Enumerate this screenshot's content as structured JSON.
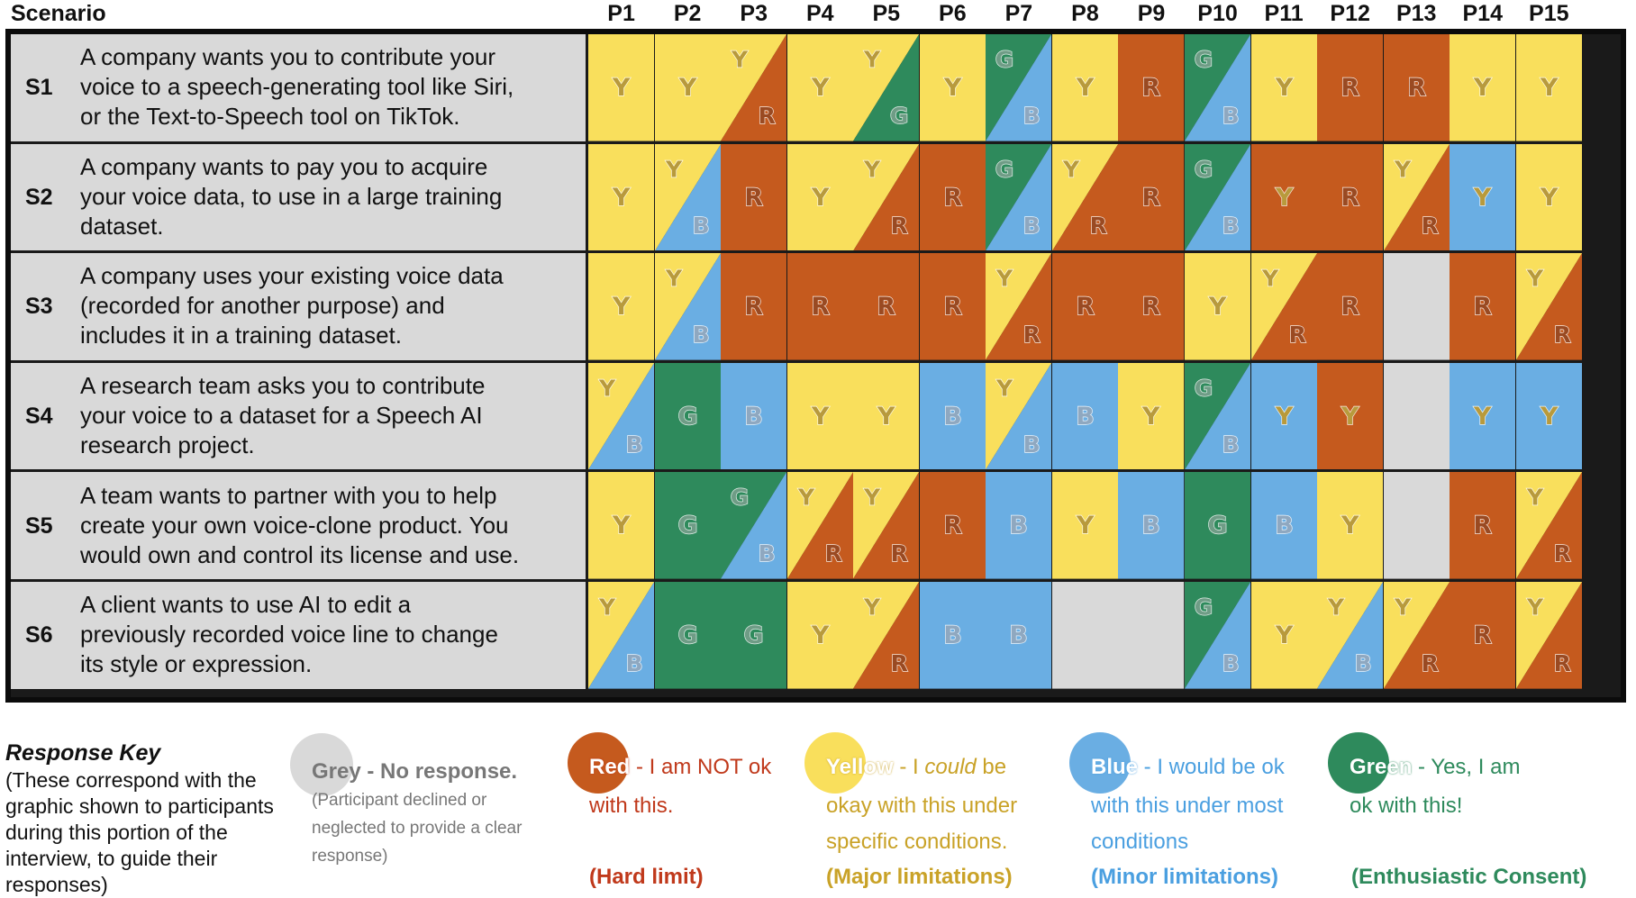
{
  "header": {
    "scenario_label": "Scenario",
    "participants": [
      "P1",
      "P2",
      "P3",
      "P4",
      "P5",
      "P6",
      "P7",
      "P8",
      "P9",
      "P10",
      "P11",
      "P12",
      "P13",
      "P14",
      "P15"
    ]
  },
  "colors": {
    "R": "#c55a1e",
    "Y": "#f9df5c",
    "B": "#6aaee3",
    "G": "#2e8a5c",
    "grey": "#d9d9d9"
  },
  "scenarios": [
    {
      "id": "S1",
      "lines": [
        "A company wants you to contribute your",
        "voice to a speech-generating tool like Siri,",
        "or the Text-to-Speech tool on TikTok."
      ],
      "responses": [
        "Y",
        "Y",
        "Y/R",
        "Y",
        "Y/G",
        "Y",
        "G/B",
        "Y",
        "R",
        "G/B",
        "Y",
        "R",
        "R",
        "Y",
        "Y"
      ]
    },
    {
      "id": "S2",
      "lines": [
        "A company wants to pay you to acquire",
        "your voice data, to use in a large training",
        "dataset."
      ],
      "responses": [
        "Y",
        "Y/B",
        "R",
        "Y",
        "Y/R",
        "R",
        "G/B",
        "Y/R",
        "R",
        "G/B",
        "Y_R",
        "R",
        "Y/R",
        "Y_B",
        "Y"
      ]
    },
    {
      "id": "S3",
      "lines": [
        "A company uses your existing voice data",
        "(recorded for another purpose) and",
        "includes it in a training dataset."
      ],
      "responses": [
        "Y",
        "Y/B",
        "R",
        "R",
        "R",
        "R",
        "Y/R",
        "R",
        "R",
        "Y",
        "Y/R",
        "R",
        "",
        "R",
        "Y/R"
      ]
    },
    {
      "id": "S4",
      "lines": [
        "A research team asks you to contribute",
        "your voice to a dataset for a Speech AI",
        "research project."
      ],
      "responses": [
        "Y/B",
        "G",
        "B",
        "Y",
        "Y",
        "B",
        "Y/B",
        "B",
        "Y",
        "G/B",
        "Y_B",
        "Y_R",
        "",
        "Y_B",
        "Y_B"
      ]
    },
    {
      "id": "S5",
      "lines": [
        "A team wants to partner with you to help",
        "create your own voice-clone product. You",
        "would own and control its license and use."
      ],
      "responses": [
        "Y",
        "G",
        "G/B",
        "Y/R",
        "Y/R",
        "R",
        "B",
        "Y",
        "B",
        "G",
        "B",
        "Y",
        "",
        "R",
        "Y/R"
      ]
    },
    {
      "id": "S6",
      "lines": [
        "A client wants to use AI to edit a",
        "previously recorded voice line to change",
        "its style or expression."
      ],
      "responses": [
        "Y/B",
        "G",
        "G",
        "Y",
        "Y/R",
        "B",
        "B",
        "",
        "",
        "G/B",
        "Y",
        "Y/B",
        "Y/R",
        "R",
        "Y/R"
      ]
    }
  ],
  "legend": {
    "title": "Response Key",
    "note": "(These correspond with the graphic shown to participants during this portion of the interview, to guide their responses)",
    "keys": [
      {
        "name": "Grey",
        "dash": " - ",
        "text": "No response.",
        "rest": "(Participant declined or neglected to provide a clear response)",
        "sub": "",
        "color_key": "grey",
        "text_color": "#777777"
      },
      {
        "name": "Red",
        "dash": " - ",
        "text": "I am NOT ok",
        "rest": "with this.",
        "sub": "(Hard limit)",
        "color_key": "R",
        "text_color": "#c0391b"
      },
      {
        "name": "Yellow",
        "dash": " - ",
        "text_pre": "I ",
        "text_em": "could",
        "text_post": " be",
        "rest": "okay with this under specific conditions.",
        "sub": "(Major limitations)",
        "color_key": "Y",
        "text_color": "#c9a227"
      },
      {
        "name": "Blue",
        "dash": " - ",
        "text": "I would be ok",
        "rest": "with this under most conditions",
        "sub": "(Minor limitations)",
        "color_key": "B",
        "text_color": "#4a9fe0"
      },
      {
        "name": "Green",
        "dash": " - ",
        "text": "Yes, I am",
        "rest": "ok with this!",
        "sub": "(Enthusiastic Consent)",
        "color_key": "G",
        "text_color": "#2e8a5c"
      }
    ]
  }
}
